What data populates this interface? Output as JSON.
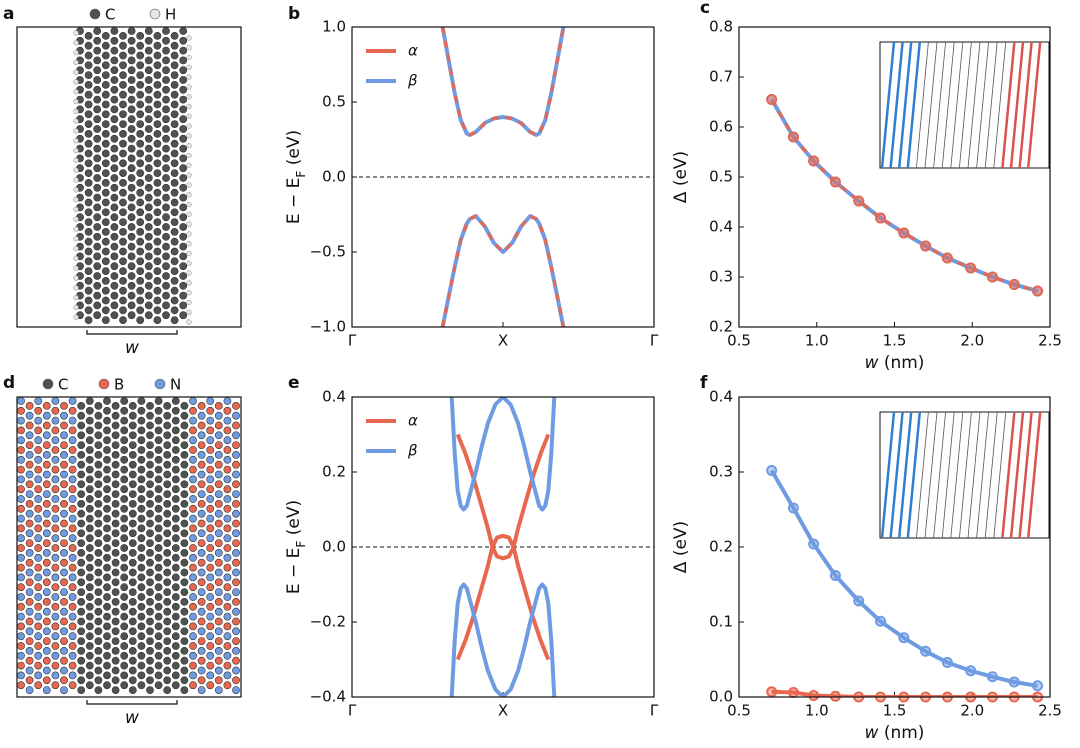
{
  "chart_data": [
    {
      "type": "structure",
      "label": "a",
      "legend": [
        {
          "name": "C",
          "color": "#4f534f"
        },
        {
          "name": "H",
          "color": "#e6e6e6"
        }
      ],
      "xlabel": "w"
    },
    {
      "type": "line",
      "label": "b",
      "ylabel": [
        "E − E",
        "F",
        " (eV)"
      ],
      "xlim": [
        0,
        2
      ],
      "xticks": [
        {
          "value": 0,
          "label": "Γ"
        },
        {
          "value": 1,
          "label": "X"
        },
        {
          "value": 2,
          "label": "Γ"
        }
      ],
      "ylim": [
        -1,
        1
      ],
      "yticks": [
        {
          "value": -1,
          "label": "−1.0"
        },
        {
          "value": -0.5,
          "label": "−0.5"
        },
        {
          "value": 0,
          "label": "0.0"
        },
        {
          "value": 0.5,
          "label": "0.5"
        },
        {
          "value": 1,
          "label": "1.0"
        }
      ],
      "hline": 0,
      "legend": "upper left",
      "series": [
        {
          "name": "α",
          "color": "#e8674f",
          "linestyle": "dashed",
          "x": [
            0.6,
            0.64,
            0.68,
            0.72,
            0.76,
            0.78,
            0.82,
            0.88,
            0.94,
            1.0,
            1.06,
            1.12,
            1.18,
            1.22,
            1.24,
            1.28,
            1.32,
            1.36,
            1.4,
            null,
            0.6,
            0.64,
            0.68,
            0.72,
            0.76,
            0.78,
            0.82,
            0.88,
            0.94,
            1.0,
            1.06,
            1.12,
            1.18,
            1.22,
            1.24,
            1.28,
            1.32,
            1.36,
            1.4
          ],
          "values": [
            1.0,
            0.78,
            0.56,
            0.38,
            0.29,
            0.28,
            0.3,
            0.36,
            0.39,
            0.4,
            0.39,
            0.36,
            0.3,
            0.28,
            0.29,
            0.38,
            0.56,
            0.78,
            1.0,
            null,
            -1.0,
            -0.8,
            -0.6,
            -0.42,
            -0.31,
            -0.28,
            -0.26,
            -0.33,
            -0.44,
            -0.5,
            -0.44,
            -0.33,
            -0.26,
            -0.28,
            -0.31,
            -0.42,
            -0.6,
            -0.8,
            -1.0
          ]
        },
        {
          "name": "β",
          "color": "#6f9be3",
          "linestyle": "solid",
          "x": [
            0.6,
            0.64,
            0.68,
            0.72,
            0.76,
            0.78,
            0.82,
            0.88,
            0.94,
            1.0,
            1.06,
            1.12,
            1.18,
            1.22,
            1.24,
            1.28,
            1.32,
            1.36,
            1.4,
            null,
            0.6,
            0.64,
            0.68,
            0.72,
            0.76,
            0.78,
            0.82,
            0.88,
            0.94,
            1.0,
            1.06,
            1.12,
            1.18,
            1.22,
            1.24,
            1.28,
            1.32,
            1.36,
            1.4
          ],
          "values": [
            1.0,
            0.78,
            0.56,
            0.38,
            0.29,
            0.28,
            0.3,
            0.36,
            0.39,
            0.4,
            0.39,
            0.36,
            0.3,
            0.28,
            0.29,
            0.38,
            0.56,
            0.78,
            1.0,
            null,
            -1.0,
            -0.8,
            -0.6,
            -0.42,
            -0.31,
            -0.28,
            -0.26,
            -0.33,
            -0.44,
            -0.5,
            -0.44,
            -0.33,
            -0.26,
            -0.28,
            -0.31,
            -0.42,
            -0.6,
            -0.8,
            -1.0
          ]
        }
      ]
    },
    {
      "type": "line",
      "label": "c",
      "ylabel": "Δ (eV)",
      "xlabel": [
        "w",
        " (nm)"
      ],
      "marker": "o",
      "xlim": [
        0.5,
        2.5
      ],
      "xticks": [
        0.5,
        {
          "value": 1,
          "label": "1.0"
        },
        1.5,
        {
          "value": 2,
          "label": "2.0"
        },
        2.5
      ],
      "ylim": [
        0.2,
        0.8
      ],
      "yticks": [
        0.2,
        0.3,
        0.4,
        0.5,
        0.6,
        0.7,
        0.8
      ],
      "x": [
        0.71,
        0.85,
        0.98,
        1.12,
        1.27,
        1.41,
        1.56,
        1.7,
        1.84,
        1.99,
        2.13,
        2.27,
        2.42
      ],
      "series": [
        {
          "name": "α",
          "color": "#e8674f",
          "linestyle": "dashed",
          "values": [
            0.655,
            0.58,
            0.532,
            0.49,
            0.452,
            0.418,
            0.388,
            0.362,
            0.338,
            0.318,
            0.3,
            0.285,
            0.272
          ]
        },
        {
          "name": "β",
          "color": "#6f9be3",
          "linestyle": "solid",
          "values": [
            0.655,
            0.58,
            0.532,
            0.49,
            0.452,
            0.418,
            0.388,
            0.362,
            0.338,
            0.318,
            0.3,
            0.285,
            0.272
          ]
        }
      ]
    },
    {
      "type": "structure",
      "label": "d",
      "legend": [
        {
          "name": "C",
          "color": "#4f534f"
        },
        {
          "name": "B",
          "color": "#e8674f"
        },
        {
          "name": "N",
          "color": "#6f9be3"
        }
      ],
      "xlabel": "w"
    },
    {
      "type": "line",
      "label": "e",
      "ylabel": [
        "E − E",
        "F",
        " (eV)"
      ],
      "xlim": [
        0,
        2
      ],
      "xticks": [
        {
          "value": 0,
          "label": "Γ"
        },
        {
          "value": 1,
          "label": "X"
        },
        {
          "value": 2,
          "label": "Γ"
        }
      ],
      "ylim": [
        -0.4,
        0.4
      ],
      "yticks": [
        {
          "value": -0.4,
          "label": "−0.4"
        },
        {
          "value": -0.2,
          "label": "−0.2"
        },
        {
          "value": 0,
          "label": "0.0"
        },
        0.2,
        0.4
      ],
      "hline": 0,
      "legend": "upper left",
      "series": [
        {
          "name": "α",
          "color": "#e8674f",
          "linestyle": "solid",
          "x": [
            0.7,
            0.75,
            0.8,
            0.85,
            0.9,
            0.93,
            0.96,
            1.0,
            1.04,
            1.07,
            1.1,
            1.15,
            1.2,
            1.25,
            1.3,
            null,
            0.7,
            0.75,
            0.8,
            0.85,
            0.9,
            0.93,
            0.96,
            1.0,
            1.04,
            1.07,
            1.1,
            1.15,
            1.2,
            1.25,
            1.3
          ],
          "values": [
            0.3,
            0.25,
            0.19,
            0.12,
            0.05,
            0.0,
            0.025,
            0.03,
            0.025,
            0.0,
            0.05,
            0.12,
            0.19,
            0.25,
            0.3,
            null,
            -0.3,
            -0.25,
            -0.19,
            -0.12,
            -0.05,
            0.0,
            -0.025,
            -0.03,
            -0.025,
            0.0,
            -0.05,
            -0.12,
            -0.19,
            -0.25,
            -0.3
          ]
        },
        {
          "name": "β",
          "color": "#6f9be3",
          "linestyle": "solid",
          "x": [
            0.66,
            0.68,
            0.7,
            0.72,
            0.74,
            0.76,
            0.78,
            0.82,
            0.86,
            0.9,
            0.95,
            1.0,
            1.05,
            1.1,
            1.14,
            1.18,
            1.22,
            1.24,
            1.26,
            1.28,
            1.3,
            1.32,
            1.34,
            null,
            0.66,
            0.68,
            0.7,
            0.72,
            0.74,
            0.76,
            0.78,
            0.82,
            0.86,
            0.9,
            0.95,
            1.0,
            1.05,
            1.1,
            1.14,
            1.18,
            1.22,
            1.24,
            1.26,
            1.28,
            1.3,
            1.32,
            1.34
          ],
          "values": [
            0.4,
            0.25,
            0.15,
            0.11,
            0.1,
            0.11,
            0.14,
            0.2,
            0.27,
            0.33,
            0.38,
            0.4,
            0.38,
            0.33,
            0.27,
            0.2,
            0.14,
            0.11,
            0.1,
            0.11,
            0.15,
            0.25,
            0.4,
            null,
            -0.4,
            -0.25,
            -0.15,
            -0.11,
            -0.1,
            -0.11,
            -0.14,
            -0.2,
            -0.27,
            -0.33,
            -0.38,
            -0.4,
            -0.38,
            -0.33,
            -0.27,
            -0.2,
            -0.14,
            -0.11,
            -0.1,
            -0.11,
            -0.15,
            -0.25,
            -0.4
          ]
        }
      ]
    },
    {
      "type": "line",
      "label": "f",
      "ylabel": "Δ (eV)",
      "xlabel": [
        "w",
        " (nm)"
      ],
      "marker": "o",
      "xlim": [
        0.5,
        2.5
      ],
      "xticks": [
        0.5,
        {
          "value": 1,
          "label": "1.0"
        },
        1.5,
        {
          "value": 2,
          "label": "2.0"
        },
        2.5
      ],
      "ylim": [
        0,
        0.4
      ],
      "yticks": [
        {
          "value": 0,
          "label": "0.0"
        },
        0.1,
        0.2,
        0.3,
        0.4
      ],
      "x": [
        0.71,
        0.85,
        0.98,
        1.12,
        1.27,
        1.41,
        1.56,
        1.7,
        1.84,
        1.99,
        2.13,
        2.27,
        2.42
      ],
      "series": [
        {
          "name": "α",
          "color": "#e8674f",
          "linestyle": "solid",
          "values": [
            0.007,
            0.006,
            0.002,
            0.001,
            0,
            0,
            0,
            0,
            0,
            0,
            0,
            0,
            0
          ]
        },
        {
          "name": "β",
          "color": "#6f9be3",
          "linestyle": "solid",
          "values": [
            0.302,
            0.252,
            0.204,
            0.162,
            0.128,
            0.101,
            0.079,
            0.061,
            0.046,
            0.035,
            0.027,
            0.02,
            0.015
          ]
        }
      ]
    }
  ]
}
